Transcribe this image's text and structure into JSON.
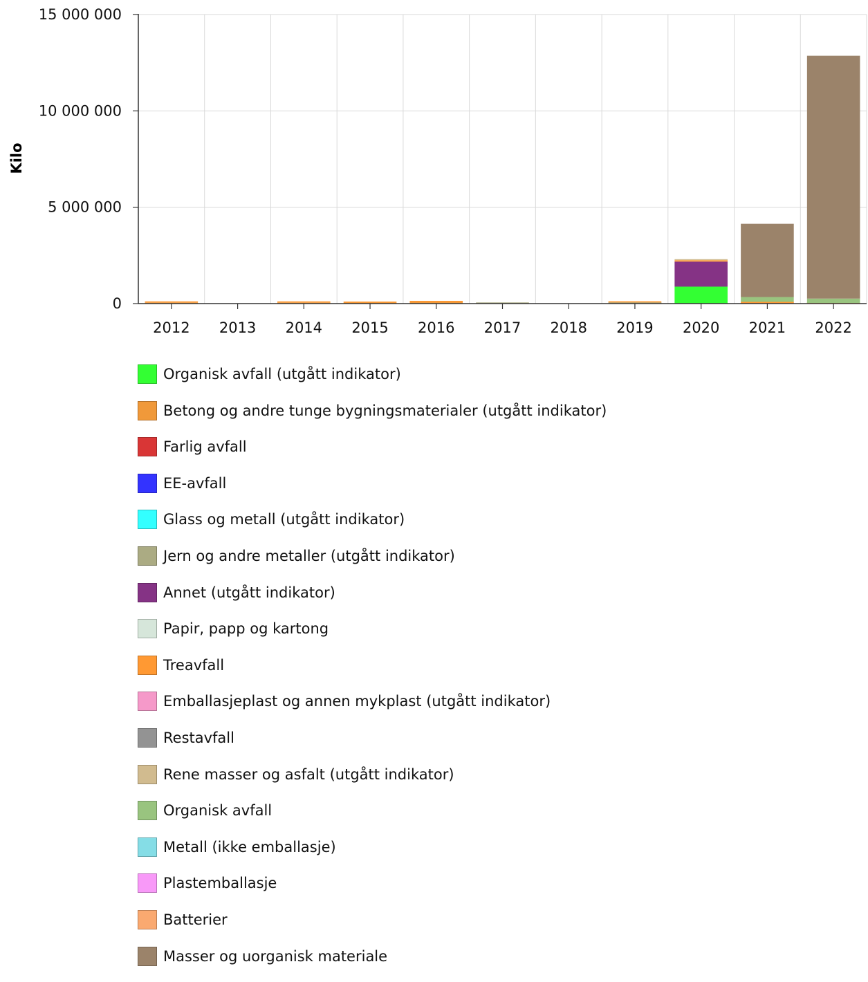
{
  "chart_data": {
    "type": "bar",
    "stacked": true,
    "ylabel": "Kilo",
    "xlabel": "",
    "ylim": [
      0,
      15000000
    ],
    "yticks": [
      0,
      5000000,
      10000000,
      15000000
    ],
    "ytick_labels": [
      "0",
      "5 000 000",
      "10 000 000",
      "15 000 000"
    ],
    "grid": true,
    "legend_position": "bottom",
    "categories": [
      "2012",
      "2013",
      "2014",
      "2015",
      "2016",
      "2017",
      "2018",
      "2019",
      "2020",
      "2021",
      "2022"
    ],
    "series": [
      {
        "name": "Organisk avfall (utgått indikator)",
        "color": "#33ff33",
        "values": [
          0,
          0,
          0,
          0,
          0,
          0,
          0,
          0,
          880000,
          0,
          0
        ]
      },
      {
        "name": "Betong og andre tunge bygningsmaterialer (utgått indikator)",
        "color": "#f0993a",
        "values": [
          60000,
          0,
          60000,
          50000,
          90000,
          0,
          0,
          20000,
          0,
          0,
          0
        ]
      },
      {
        "name": "Farlig avfall",
        "color": "#d93636",
        "values": [
          0,
          0,
          0,
          0,
          0,
          0,
          0,
          0,
          0,
          20000,
          10000
        ]
      },
      {
        "name": "EE-avfall",
        "color": "#3333ff",
        "values": [
          0,
          0,
          0,
          0,
          0,
          0,
          0,
          0,
          0,
          0,
          0
        ]
      },
      {
        "name": "Glass og metall (utgått indikator)",
        "color": "#33ffff",
        "values": [
          0,
          0,
          0,
          0,
          0,
          0,
          0,
          0,
          0,
          0,
          0
        ]
      },
      {
        "name": "Jern og andre metaller (utgått indikator)",
        "color": "#abab83",
        "values": [
          0,
          0,
          0,
          0,
          0,
          60000,
          0,
          40000,
          0,
          0,
          0
        ]
      },
      {
        "name": "Annet (utgått indikator)",
        "color": "#853385",
        "values": [
          0,
          0,
          0,
          0,
          0,
          0,
          0,
          0,
          1300000,
          0,
          0
        ]
      },
      {
        "name": "Papir, papp og kartong",
        "color": "#d6e6da",
        "values": [
          0,
          0,
          0,
          0,
          0,
          0,
          0,
          0,
          0,
          0,
          0
        ]
      },
      {
        "name": "Treavfall",
        "color": "#ff9933",
        "values": [
          10000,
          0,
          10000,
          10000,
          20000,
          0,
          0,
          60000,
          70000,
          70000,
          20000
        ]
      },
      {
        "name": "Emballasjeplast og annen mykplast (utgått indikator)",
        "color": "#f599c9",
        "values": [
          0,
          0,
          0,
          0,
          0,
          0,
          0,
          0,
          0,
          0,
          0
        ]
      },
      {
        "name": "Restavfall",
        "color": "#939393",
        "values": [
          0,
          0,
          0,
          0,
          0,
          0,
          0,
          0,
          0,
          0,
          0
        ]
      },
      {
        "name": "Rene masser og asfalt (utgått indikator)",
        "color": "#d1bb8f",
        "values": [
          0,
          0,
          0,
          0,
          0,
          0,
          0,
          0,
          50000,
          0,
          0
        ]
      },
      {
        "name": "Organisk avfall",
        "color": "#99c47f",
        "values": [
          0,
          0,
          0,
          0,
          0,
          0,
          0,
          0,
          0,
          250000,
          230000
        ]
      },
      {
        "name": "Metall (ikke emballasje)",
        "color": "#85dde6",
        "values": [
          0,
          0,
          0,
          0,
          0,
          0,
          0,
          0,
          0,
          0,
          0
        ]
      },
      {
        "name": "Plastemballasje",
        "color": "#f899f8",
        "values": [
          0,
          0,
          0,
          0,
          0,
          0,
          0,
          0,
          0,
          0,
          0
        ]
      },
      {
        "name": "Batterier",
        "color": "#faa970",
        "values": [
          0,
          0,
          0,
          0,
          0,
          0,
          0,
          0,
          0,
          0,
          0
        ]
      },
      {
        "name": "Masser og uorganisk materiale",
        "color": "#9b836a",
        "values": [
          0,
          0,
          0,
          0,
          0,
          0,
          0,
          0,
          0,
          3800000,
          12600000
        ]
      }
    ]
  }
}
